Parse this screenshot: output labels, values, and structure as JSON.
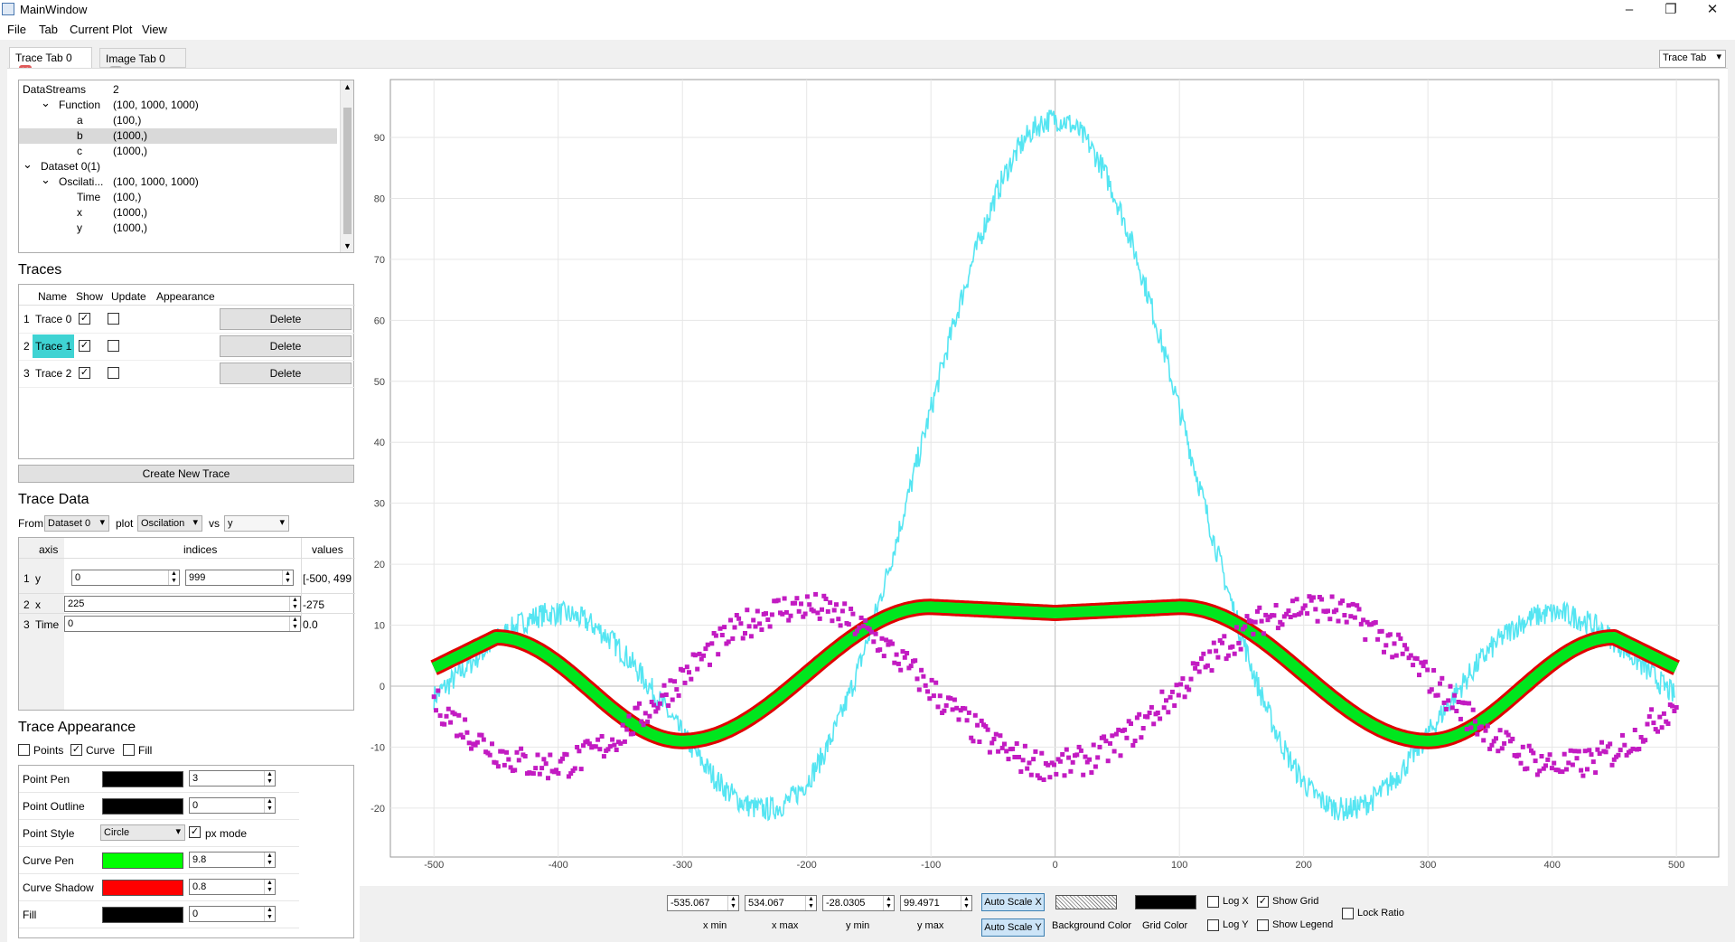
{
  "window": {
    "title": "MainWindow",
    "minimize": "–",
    "restore": "❐",
    "close": "✕"
  },
  "menu": [
    "File",
    "Tab",
    "Current Plot",
    "View"
  ],
  "tabs": [
    {
      "label": "Trace Tab 0",
      "close_color": "#e05b5b"
    },
    {
      "label": "Image Tab 0",
      "close_color": "#b9b9b9"
    }
  ],
  "tab_selector": "Trace Tab",
  "tree": {
    "rows": [
      {
        "indent": 0,
        "arrow": "",
        "name": "DataStreams",
        "value": "2"
      },
      {
        "indent": 1,
        "arrow": "⌄",
        "name": "Function",
        "value": "(100, 1000, 1000)"
      },
      {
        "indent": 2,
        "arrow": "",
        "name": "a",
        "value": "(100,)"
      },
      {
        "indent": 2,
        "arrow": "",
        "name": "b",
        "value": "(1000,)",
        "selected": true
      },
      {
        "indent": 2,
        "arrow": "",
        "name": "c",
        "value": "(1000,)"
      },
      {
        "indent": 0,
        "arrow": "⌄",
        "name": "Dataset 0(1)",
        "value": ""
      },
      {
        "indent": 1,
        "arrow": "⌄",
        "name": "Oscilati...",
        "value": "(100, 1000, 1000)"
      },
      {
        "indent": 2,
        "arrow": "",
        "name": "Time",
        "value": "(100,)"
      },
      {
        "indent": 2,
        "arrow": "",
        "name": "x",
        "value": "(1000,)"
      },
      {
        "indent": 2,
        "arrow": "",
        "name": "y",
        "value": "(1000,)"
      }
    ]
  },
  "traces": {
    "title": "Traces",
    "headers": [
      "Name",
      "Show",
      "Update",
      "Appearance"
    ],
    "rows": [
      {
        "num": "1",
        "name": "Trace 0",
        "show": true,
        "update": false,
        "delete": "Delete"
      },
      {
        "num": "2",
        "name": "Trace 1",
        "show": true,
        "update": false,
        "delete": "Delete",
        "highlight": "#3fd3d3"
      },
      {
        "num": "3",
        "name": "Trace 2",
        "show": true,
        "update": false,
        "delete": "Delete"
      }
    ],
    "create_button": "Create New Trace"
  },
  "trace_data": {
    "title": "Trace Data",
    "from_label": "From",
    "from_value": "Dataset 0",
    "plot_label": "plot",
    "plot_value": "Oscilation",
    "vs_label": "vs",
    "vs_value": "y",
    "headers": [
      "axis",
      "indices",
      "values"
    ],
    "rows": [
      {
        "num": "1",
        "axis": "y",
        "idx_start": "0",
        "idx_end": "999",
        "values": "[-500, 499"
      },
      {
        "num": "2",
        "axis": "x",
        "idx": "225",
        "values": "-275"
      },
      {
        "num": "3",
        "axis": "Time",
        "idx": "0",
        "values": "0.0"
      }
    ]
  },
  "appearance": {
    "title": "Trace Appearance",
    "points_label": "Points",
    "points": false,
    "curve_label": "Curve",
    "curve": true,
    "fill_label": "Fill",
    "fill": false,
    "rows": [
      {
        "label": "Point Pen",
        "color": "#000000",
        "value": "3"
      },
      {
        "label": "Point Outline",
        "color": "#000000",
        "value": "0"
      },
      {
        "label": "Point Style",
        "style": "Circle",
        "px_label": "px mode",
        "px": true
      },
      {
        "label": "Curve Pen",
        "color": "#00ff00",
        "value": "9.8"
      },
      {
        "label": "Curve Shadow",
        "color": "#ff0000",
        "value": "0.8"
      },
      {
        "label": "Fill",
        "color": "#000000",
        "value": "0"
      }
    ]
  },
  "chart_data": {
    "type": "line",
    "xlim": [
      -535.067,
      534.067
    ],
    "ylim": [
      -28.0305,
      99.4971
    ],
    "x_ticks": [
      -500,
      -400,
      -300,
      -200,
      -100,
      0,
      100,
      200,
      300,
      400,
      500
    ],
    "y_ticks": [
      -20,
      -10,
      0,
      10,
      20,
      30,
      40,
      50,
      60,
      70,
      80,
      90
    ],
    "grid": true,
    "series": [
      {
        "color": "#55e5f2",
        "style": "noisy-line",
        "x_range": [
          -500,
          499
        ],
        "values": "sinc-like peak 93 at x=0, troughs -21 at ±180, secondary peaks 13 at ±300, ends ~6"
      },
      {
        "color": "#00e61e",
        "shadow": "#e00000",
        "style": "thick-line",
        "x_range": [
          -500,
          500
        ],
        "values": "peaks 8 at ±450, troughs -9 at ±300, ~13 near ±100, 12 at 0, ends 3"
      },
      {
        "color": "#c21bc2",
        "style": "scatter-square",
        "x_range": [
          -500,
          500
        ],
        "values": "cosine amplitude ~13, period ~410, -12 at 0"
      }
    ]
  },
  "controls": {
    "xmin": "-535.067",
    "xmax": "534.067",
    "ymin": "-28.0305",
    "ymax": "99.4971",
    "xmin_label": "x min",
    "xmax_label": "x max",
    "ymin_label": "y min",
    "ymax_label": "y max",
    "autoscale_x": "Auto Scale X",
    "autoscale_y": "Auto Scale Y",
    "bg_label": "Background Color",
    "grid_color_label": "Grid Color",
    "logx": "Log X",
    "logy": "Log Y",
    "show_grid": "Show Grid",
    "show_legend": "Show Legend",
    "lock_ratio": "Lock Ratio",
    "show_grid_checked": true
  }
}
